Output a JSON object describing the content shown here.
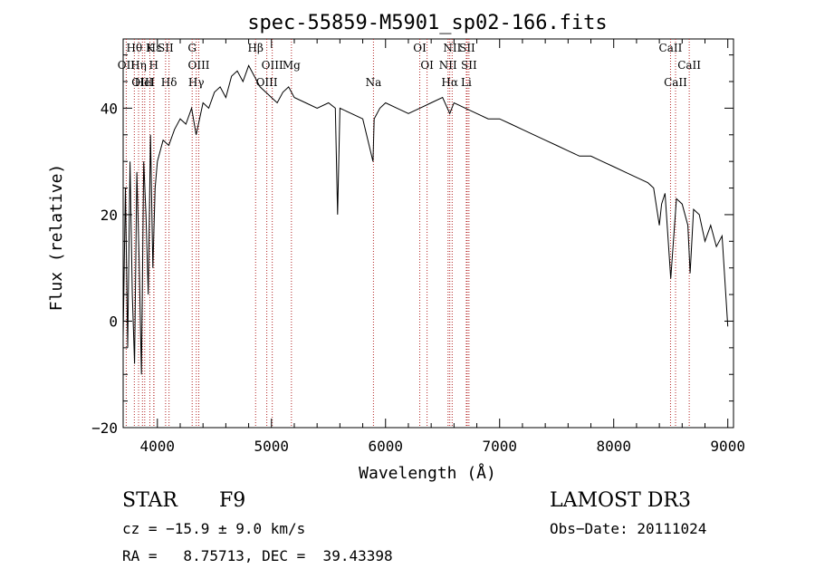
{
  "chart_data": {
    "type": "line",
    "title": "spec-55859-M5901_sp02-166.fits",
    "xlabel": "Wavelength (Å)",
    "ylabel": "Flux (relative)",
    "xlim": [
      3700,
      9050
    ],
    "ylim": [
      -20,
      53
    ],
    "xticks": [
      4000,
      5000,
      6000,
      7000,
      8000,
      9000
    ],
    "yticks": [
      -20,
      0,
      20,
      40
    ],
    "grid": false,
    "series": [
      {
        "name": "flux",
        "x": [
          3700,
          3720,
          3740,
          3760,
          3780,
          3800,
          3820,
          3840,
          3860,
          3880,
          3900,
          3920,
          3940,
          3960,
          3980,
          4000,
          4050,
          4100,
          4150,
          4200,
          4250,
          4300,
          4340,
          4400,
          4450,
          4500,
          4550,
          4600,
          4650,
          4700,
          4750,
          4800,
          4850,
          4900,
          4950,
          5000,
          5050,
          5100,
          5150,
          5200,
          5300,
          5400,
          5500,
          5560,
          5580,
          5600,
          5700,
          5800,
          5890,
          5900,
          5950,
          6000,
          6100,
          6200,
          6300,
          6400,
          6500,
          6563,
          6600,
          6700,
          6800,
          6900,
          7000,
          7100,
          7200,
          7300,
          7400,
          7500,
          7600,
          7700,
          7800,
          7900,
          8000,
          8100,
          8200,
          8300,
          8350,
          8400,
          8420,
          8450,
          8500,
          8550,
          8600,
          8650,
          8670,
          8700,
          8750,
          8800,
          8850,
          8900,
          8950,
          9000
        ],
        "values": [
          -3,
          25,
          -5,
          30,
          5,
          -8,
          28,
          12,
          -10,
          30,
          20,
          5,
          35,
          10,
          25,
          30,
          34,
          33,
          36,
          38,
          37,
          40,
          35,
          41,
          40,
          43,
          44,
          42,
          46,
          47,
          45,
          48,
          46,
          44,
          43,
          42,
          41,
          43,
          44,
          42,
          41,
          40,
          41,
          40,
          20,
          40,
          39,
          38,
          30,
          38,
          40,
          41,
          40,
          39,
          40,
          41,
          42,
          39,
          41,
          40,
          39,
          38,
          38,
          37,
          36,
          35,
          34,
          33,
          32,
          31,
          31,
          30,
          29,
          28,
          27,
          26,
          25,
          18,
          22,
          24,
          8,
          23,
          22,
          18,
          9,
          21,
          20,
          15,
          18,
          14,
          16,
          -1
        ]
      }
    ],
    "lines": [
      {
        "label": "Hθ",
        "x": 3798
      },
      {
        "label": "OII",
        "x": 3727
      },
      {
        "label": "OIII",
        "x": 3869
      },
      {
        "label": "Hε",
        "x": 3970
      },
      {
        "label": "Hη",
        "x": 3835
      },
      {
        "label": "HeI",
        "x": 3889
      },
      {
        "label": "K",
        "x": 3934
      },
      {
        "label": "H",
        "x": 3968
      },
      {
        "label": "Hδ",
        "x": 4102
      },
      {
        "label": "SII",
        "x": 4072
      },
      {
        "label": "OIII",
        "x": 4363
      },
      {
        "label": "Hγ",
        "x": 4341
      },
      {
        "label": "G",
        "x": 4305
      },
      {
        "label": "OIII",
        "x": 5007
      },
      {
        "label": "OIII",
        "x": 4959
      },
      {
        "label": "Hβ",
        "x": 4861
      },
      {
        "label": "Mg",
        "x": 5175
      },
      {
        "label": "Na",
        "x": 5894
      },
      {
        "label": "OI",
        "x": 6300
      },
      {
        "label": "OI",
        "x": 6364
      },
      {
        "label": "Hα",
        "x": 6563
      },
      {
        "label": "SII",
        "x": 6716
      },
      {
        "label": "NII",
        "x": 6548
      },
      {
        "label": "Li",
        "x": 6708
      },
      {
        "label": "NII",
        "x": 6584
      },
      {
        "label": "SII",
        "x": 6731
      },
      {
        "label": "CaII",
        "x": 8542
      },
      {
        "label": "CaII",
        "x": 8498
      },
      {
        "label": "CaII",
        "x": 8662
      }
    ]
  },
  "info": {
    "object_class": "STAR",
    "subclass": "F9",
    "survey": "LAMOST DR3",
    "cz": "cz = −15.9 ± 9.0 km/s",
    "obs_date": "Obs−Date: 20111024",
    "coords": "RA =   8.75713, DEC =  39.43398"
  }
}
